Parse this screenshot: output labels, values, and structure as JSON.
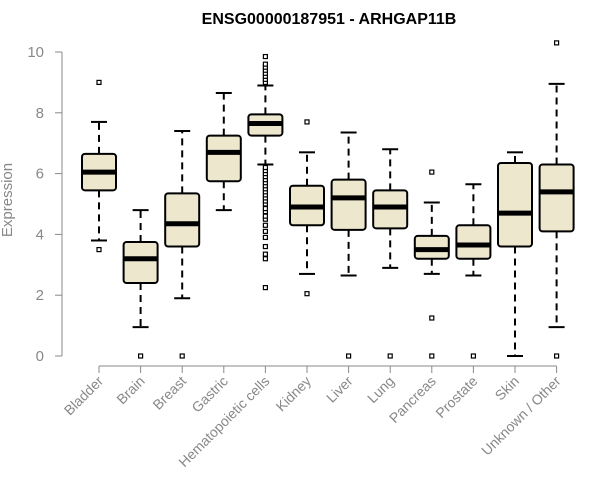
{
  "chart_data": {
    "type": "boxplot",
    "title": "ENSG00000187951 - ARHGAP11B",
    "xlabel": "",
    "ylabel": "Expression",
    "ylim": [
      0,
      10
    ],
    "yticks": [
      0,
      2,
      4,
      6,
      8,
      10
    ],
    "box_fill": "#EDE7CD",
    "categories": [
      "Bladder",
      "Brain",
      "Breast",
      "Gastric",
      "Hematopoietic cells",
      "Kidney",
      "Liver",
      "Lung",
      "Pancreas",
      "Prostate",
      "Skin",
      "Unknown / Other"
    ],
    "boxes": [
      {
        "name": "Bladder",
        "whisker_low": 3.8,
        "q1": 5.45,
        "median": 6.05,
        "q3": 6.65,
        "whisker_high": 7.7,
        "outliers": [
          3.5,
          9.0
        ]
      },
      {
        "name": "Brain",
        "whisker_low": 0.95,
        "q1": 2.4,
        "median": 3.2,
        "q3": 3.75,
        "whisker_high": 4.8,
        "outliers": [
          0.0
        ]
      },
      {
        "name": "Breast",
        "whisker_low": 1.9,
        "q1": 3.6,
        "median": 4.35,
        "q3": 5.35,
        "whisker_high": 7.4,
        "outliers": [
          0.0
        ]
      },
      {
        "name": "Gastric",
        "whisker_low": 4.8,
        "q1": 5.75,
        "median": 6.7,
        "q3": 7.25,
        "whisker_high": 8.65,
        "outliers": []
      },
      {
        "name": "Hematopoietic cells",
        "whisker_low": 6.3,
        "q1": 7.25,
        "median": 7.65,
        "q3": 7.95,
        "whisker_high": 8.9,
        "outliers": [
          2.25,
          3.2,
          3.35,
          3.6,
          3.9,
          4.1,
          4.3,
          4.5,
          4.6,
          4.75,
          4.85,
          5.0,
          5.1,
          5.2,
          5.3,
          5.4,
          5.5,
          5.6,
          5.7,
          5.8,
          5.9,
          6.0,
          6.1,
          6.2,
          9.0,
          9.1,
          9.2,
          9.3,
          9.4,
          9.5,
          9.6,
          9.85
        ]
      },
      {
        "name": "Kidney",
        "whisker_low": 2.7,
        "q1": 4.3,
        "median": 4.9,
        "q3": 5.6,
        "whisker_high": 6.7,
        "outliers": [
          2.05,
          7.7
        ]
      },
      {
        "name": "Liver",
        "whisker_low": 2.65,
        "q1": 4.15,
        "median": 5.2,
        "q3": 5.8,
        "whisker_high": 7.35,
        "outliers": [
          0.0
        ]
      },
      {
        "name": "Lung",
        "whisker_low": 2.9,
        "q1": 4.2,
        "median": 4.9,
        "q3": 5.45,
        "whisker_high": 6.8,
        "outliers": [
          0.0
        ]
      },
      {
        "name": "Pancreas",
        "whisker_low": 2.7,
        "q1": 3.2,
        "median": 3.5,
        "q3": 3.95,
        "whisker_high": 5.05,
        "outliers": [
          0.0,
          1.25,
          6.05
        ]
      },
      {
        "name": "Prostate",
        "whisker_low": 2.65,
        "q1": 3.2,
        "median": 3.65,
        "q3": 4.3,
        "whisker_high": 5.65,
        "outliers": [
          0.0
        ]
      },
      {
        "name": "Skin",
        "whisker_low": 0.0,
        "q1": 3.6,
        "median": 4.7,
        "q3": 6.35,
        "whisker_high": 6.7,
        "outliers": []
      },
      {
        "name": "Unknown / Other",
        "whisker_low": 0.95,
        "q1": 4.1,
        "median": 5.4,
        "q3": 6.3,
        "whisker_high": 8.95,
        "outliers": [
          0.0,
          10.3
        ]
      }
    ]
  }
}
